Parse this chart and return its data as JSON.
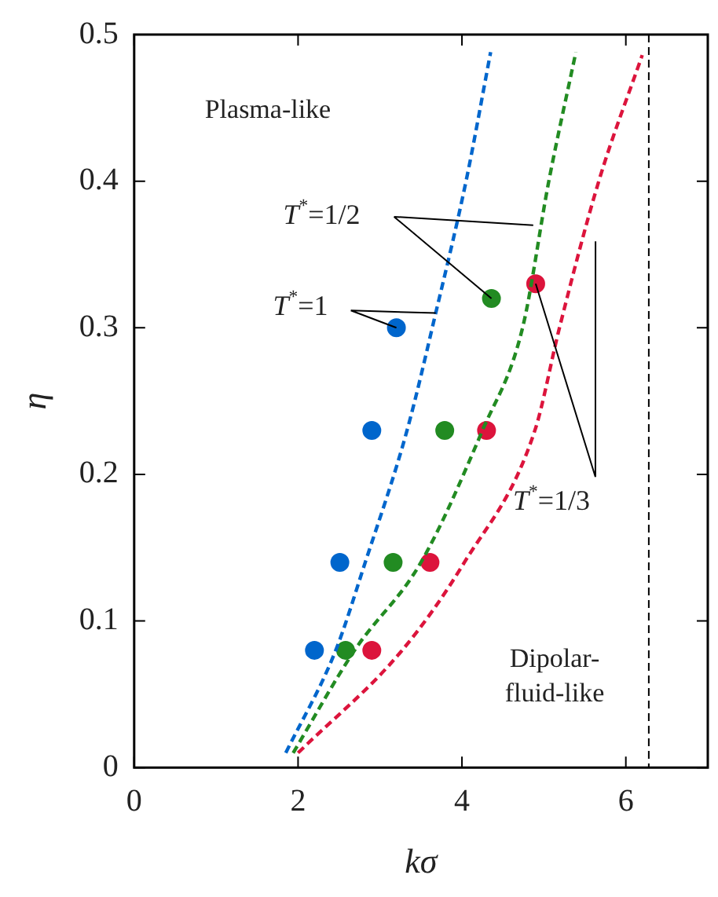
{
  "chart_data": {
    "type": "scatter",
    "xlabel": "kσ",
    "ylabel": "η",
    "xlim": [
      0,
      7
    ],
    "xticks": [
      0,
      2,
      4,
      6
    ],
    "ylim": [
      0,
      0.5
    ],
    "yticks": [
      0,
      0.1,
      0.2,
      0.3,
      0.4,
      0.5
    ],
    "grid": false,
    "legend": false,
    "marker": "circle",
    "series": [
      {
        "type": "line",
        "color": "#0066cc",
        "line_style": "dashed",
        "marker": "none",
        "x": [
          1.85,
          2.46,
          2.82,
          3.33,
          3.68,
          4.05,
          4.35
        ],
        "values": [
          0.01,
          0.08,
          0.14,
          0.23,
          0.31,
          0.4,
          0.488
        ]
      },
      {
        "type": "line",
        "color": "#228b22",
        "line_style": "dashed",
        "marker": "none",
        "x": [
          1.94,
          2.69,
          3.5,
          4.25,
          4.74,
          5.06,
          5.39
        ],
        "values": [
          0.01,
          0.08,
          0.14,
          0.23,
          0.3,
          0.4,
          0.488
        ]
      },
      {
        "type": "line",
        "color": "#dc143c",
        "line_style": "dashed",
        "marker": "none",
        "x": [
          2.0,
          3.27,
          4.03,
          4.89,
          5.19,
          5.67,
          6.2
        ],
        "values": [
          0.01,
          0.08,
          0.14,
          0.23,
          0.3,
          0.4,
          0.486
        ]
      },
      {
        "type": "scatter",
        "color": "#0066cc",
        "x": [
          2.2,
          2.51,
          2.9,
          3.2
        ],
        "values": [
          0.08,
          0.14,
          0.23,
          0.3
        ]
      },
      {
        "type": "scatter",
        "color": "#228b22",
        "x": [
          2.58,
          3.16,
          3.79,
          4.36
        ],
        "values": [
          0.08,
          0.14,
          0.23,
          0.32
        ]
      },
      {
        "type": "scatter",
        "color": "#dc143c",
        "x": [
          2.9,
          3.61,
          4.3,
          4.9
        ],
        "values": [
          0.08,
          0.14,
          0.23,
          0.33
        ]
      }
    ],
    "ref_lines": [
      {
        "axis": "x",
        "value": 6.28,
        "color": "#000000",
        "line_style": "dashed"
      }
    ],
    "annotations": [
      "Plasma-like",
      "Dipolar-\nfluid-like",
      {
        "text": "T$^{*}$=1",
        "x": 3.2,
        "y": 0.3
      },
      {
        "text": "T$^{*}$=1/2",
        "x": 4.36,
        "y": 0.32
      },
      {
        "text": "T$^{*}$=1/3",
        "x": 4.9,
        "y": 0.33
      }
    ]
  }
}
